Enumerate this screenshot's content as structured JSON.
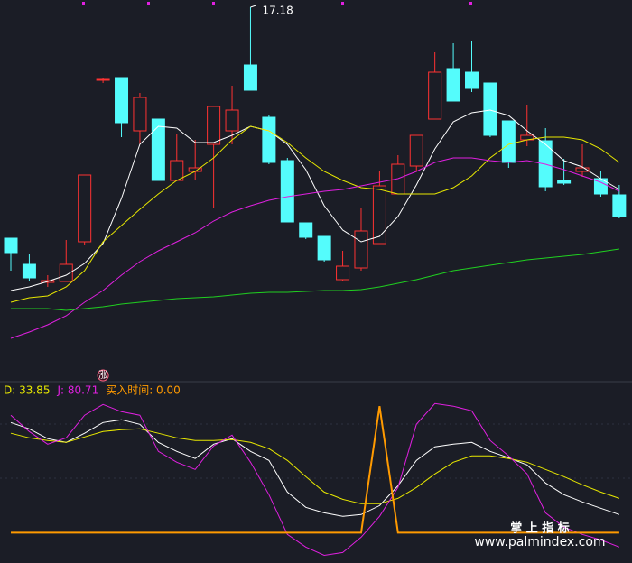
{
  "chart_data": [
    {
      "type": "candlestick",
      "ylim": [
        13.1,
        17.26
      ],
      "up_color": "#ff3232",
      "down_color": "#54fcfc",
      "open": [
        14.62,
        14.33,
        14.13,
        14.14,
        14.58,
        16.37,
        16.4,
        15.81,
        15.94,
        15.26,
        15.36,
        15.66,
        15.81,
        16.54,
        15.96,
        15.48,
        14.79,
        14.64,
        14.16,
        14.29,
        14.56,
        15.11,
        15.42,
        15.94,
        16.5,
        16.46,
        16.34,
        15.92,
        15.71,
        15.7,
        15.26,
        15.36,
        15.28,
        15.1
      ],
      "high": [
        14.62,
        14.44,
        14.21,
        14.6,
        15.32,
        16.39,
        16.4,
        16.23,
        15.94,
        15.78,
        15.71,
        16.08,
        16.31,
        17.18,
        15.98,
        15.51,
        14.79,
        14.64,
        14.48,
        14.96,
        15.36,
        15.54,
        15.76,
        16.68,
        16.78,
        16.81,
        16.34,
        15.92,
        16.1,
        15.84,
        15.5,
        15.66,
        15.36,
        15.21
      ],
      "low": [
        14.26,
        14.14,
        14.08,
        14.14,
        14.54,
        16.34,
        15.74,
        15.66,
        15.26,
        15.26,
        15.26,
        14.96,
        15.66,
        16.26,
        15.44,
        14.8,
        14.61,
        14.36,
        14.14,
        14.26,
        14.56,
        15.11,
        15.36,
        15.94,
        16.14,
        16.24,
        15.74,
        15.4,
        15.64,
        15.14,
        15.21,
        15.3,
        15.08,
        14.84
      ],
      "close": [
        14.46,
        14.18,
        14.15,
        14.33,
        15.32,
        16.38,
        15.9,
        16.18,
        15.26,
        15.48,
        15.4,
        16.08,
        16.04,
        16.26,
        15.46,
        14.8,
        14.63,
        14.38,
        14.31,
        14.7,
        15.2,
        15.44,
        15.76,
        16.46,
        16.14,
        16.28,
        15.76,
        15.46,
        15.76,
        15.19,
        15.23,
        15.4,
        15.11,
        14.86
      ],
      "lines": [
        {
          "color": "#ffffff",
          "values": [
            14.04,
            14.08,
            14.14,
            14.21,
            14.34,
            14.56,
            15.06,
            15.66,
            15.86,
            15.84,
            15.68,
            15.68,
            15.76,
            15.86,
            15.81,
            15.66,
            15.38,
            14.98,
            14.71,
            14.58,
            14.64,
            14.86,
            15.21,
            15.61,
            15.91,
            16.01,
            16.04,
            15.98,
            15.81,
            15.66,
            15.48,
            15.41,
            15.28,
            15.16
          ]
        },
        {
          "color": "#e8e800",
          "values": [
            13.91,
            13.96,
            13.98,
            14.08,
            14.26,
            14.58,
            14.76,
            14.94,
            15.11,
            15.26,
            15.36,
            15.51,
            15.71,
            15.86,
            15.81,
            15.68,
            15.51,
            15.36,
            15.26,
            15.18,
            15.16,
            15.11,
            15.11,
            15.11,
            15.18,
            15.31,
            15.51,
            15.66,
            15.71,
            15.74,
            15.74,
            15.71,
            15.61,
            15.46
          ]
        },
        {
          "color": "#e020e0",
          "values": [
            13.51,
            13.58,
            13.66,
            13.76,
            13.91,
            14.04,
            14.21,
            14.36,
            14.48,
            14.58,
            14.68,
            14.81,
            14.91,
            14.98,
            15.04,
            15.08,
            15.11,
            15.14,
            15.16,
            15.2,
            15.24,
            15.28,
            15.36,
            15.46,
            15.51,
            15.51,
            15.48,
            15.46,
            15.48,
            15.44,
            15.38,
            15.31,
            15.24,
            15.14
          ]
        },
        {
          "color": "#20d020",
          "values": [
            13.84,
            13.84,
            13.84,
            13.82,
            13.84,
            13.86,
            13.89,
            13.91,
            13.93,
            13.95,
            13.96,
            13.97,
            13.99,
            14.01,
            14.02,
            14.02,
            14.03,
            14.04,
            14.04,
            14.05,
            14.08,
            14.12,
            14.16,
            14.21,
            14.26,
            14.29,
            14.32,
            14.35,
            14.38,
            14.4,
            14.42,
            14.44,
            14.47,
            14.5
          ]
        }
      ],
      "annotations": [
        "涨"
      ]
    },
    {
      "type": "line",
      "ylim": [
        -24,
        118
      ],
      "legend": [
        {
          "text": "D: 33.85",
          "color": "#e8e800"
        },
        {
          "text": "J: 80.71",
          "color": "#e020e0"
        },
        {
          "text": "买入时间: 0.00",
          "color": "#ff9a00"
        }
      ],
      "series": [
        {
          "color": "#ffffff",
          "values": [
            87.1,
            82.1,
            74.3,
            71.4,
            78.6,
            87.1,
            89.3,
            85.7,
            71.4,
            64.3,
            58.6,
            70.0,
            74.3,
            64.3,
            57.1,
            32.1,
            20.0,
            15.7,
            12.9,
            14.3,
            21.4,
            37.1,
            57.1,
            67.9,
            70.0,
            71.4,
            64.3,
            59.3,
            53.6,
            39.3,
            30.0,
            24.3,
            19.3,
            14.3
          ]
        },
        {
          "color": "#e8e800",
          "values": [
            78.6,
            75.0,
            72.9,
            71.4,
            75.7,
            80.0,
            81.4,
            82.1,
            78.6,
            75.0,
            72.9,
            72.9,
            73.6,
            71.4,
            66.4,
            57.1,
            44.3,
            32.1,
            26.4,
            22.9,
            22.9,
            27.1,
            35.7,
            46.4,
            55.7,
            60.7,
            60.7,
            58.6,
            55.7,
            50.0,
            44.3,
            37.9,
            32.1,
            27.1
          ]
        },
        {
          "color": "#e020e0",
          "values": [
            92.9,
            80.0,
            70.0,
            75.0,
            92.9,
            101.4,
            95.7,
            92.9,
            64.3,
            55.7,
            50.0,
            68.6,
            77.1,
            55.7,
            30.0,
            -1.4,
            -11.4,
            -17.9,
            -15.7,
            -3.6,
            12.9,
            35.7,
            85.7,
            102.1,
            100.0,
            96.4,
            72.9,
            60.7,
            46.4,
            15.7,
            4.3,
            -1.4,
            -5.7,
            -11.4
          ]
        },
        {
          "color": "#ff9a00",
          "values": [
            0,
            0,
            0,
            0,
            0,
            0,
            0,
            0,
            0,
            0,
            0,
            0,
            0,
            0,
            0,
            0,
            0,
            0,
            0,
            0,
            100,
            0,
            0,
            0,
            0,
            0,
            0,
            0,
            0,
            0,
            0,
            0,
            0,
            0
          ]
        }
      ]
    }
  ],
  "watermark": {
    "title": "掌 上 指 标",
    "url": "www.palmindex.com"
  }
}
